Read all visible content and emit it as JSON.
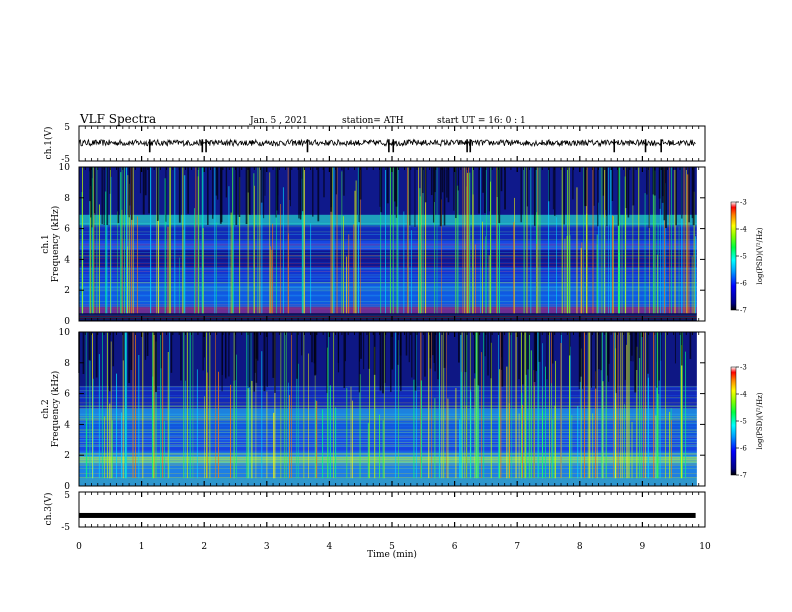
{
  "header": {
    "title": "VLF Spectra",
    "date": "Jan. 5 , 2021",
    "station": "station= ATH",
    "start": "start UT =  16: 0  : 1"
  },
  "chart_data": [
    {
      "type": "line",
      "ylabel": "ch.1(V)",
      "ytick_labels": [
        "5",
        "-5"
      ],
      "ylim": [
        -5,
        5
      ],
      "x_range_min": [
        0,
        9.85
      ],
      "mean_level": 0.2,
      "noise_amplitude": 0.4
    },
    {
      "type": "heatmap",
      "ylabel": "ch.1",
      "ylabel2": "Frequency (kHz)",
      "yticks": [
        0,
        2,
        4,
        6,
        8,
        10
      ],
      "ylim": [
        0,
        10
      ],
      "xlim": [
        0,
        10
      ],
      "colorbar": {
        "label": "log(PSD)(V²/Hz)",
        "ticks": [
          -3,
          -4,
          -5,
          -6,
          -7
        ],
        "range": [
          -7,
          -3
        ]
      }
    },
    {
      "type": "heatmap",
      "ylabel": "ch.2",
      "ylabel2": "Frequency (kHz)",
      "yticks": [
        0,
        2,
        4,
        6,
        8,
        10
      ],
      "ylim": [
        0,
        10
      ],
      "xlim": [
        0,
        10
      ],
      "colorbar": {
        "label": "log(PSD)(V²/Hz)",
        "ticks": [
          -3,
          -4,
          -5,
          -6,
          -7
        ],
        "range": [
          -7,
          -3
        ]
      }
    },
    {
      "type": "line",
      "ylabel": "ch.3(V)",
      "ytick_labels": [
        "5",
        "-5"
      ],
      "ylim": [
        -5,
        5
      ],
      "x_range_min": [
        0,
        9.85
      ],
      "constant_value": -1.7
    }
  ],
  "xaxis": {
    "label": "Time (min)",
    "ticks": [
      0,
      1,
      2,
      3,
      4,
      5,
      6,
      7,
      8,
      9,
      10
    ]
  }
}
